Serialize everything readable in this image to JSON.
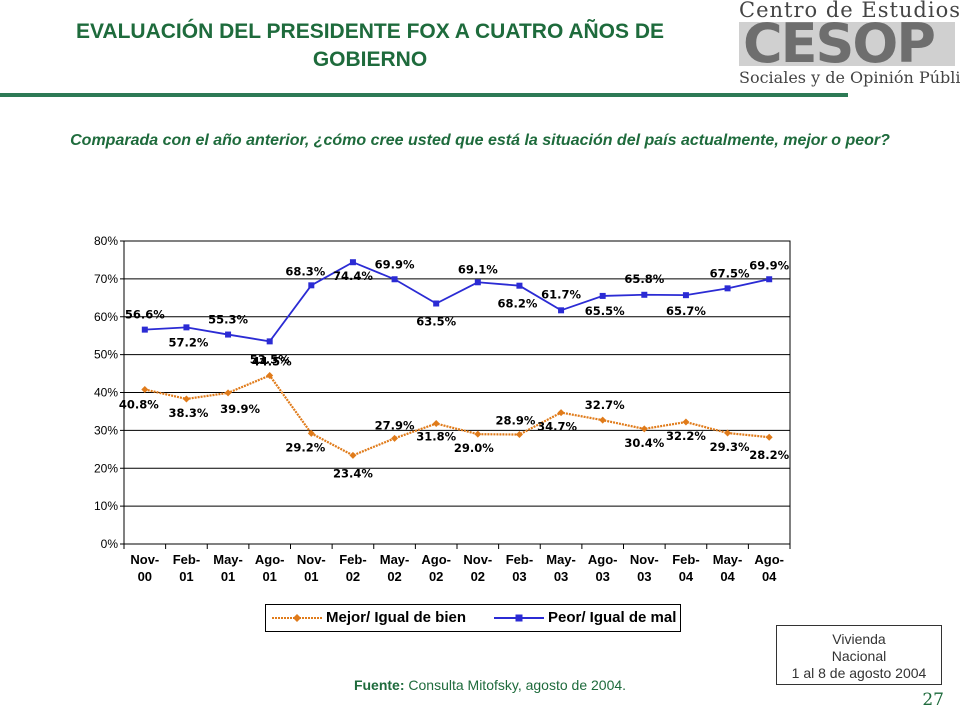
{
  "header": {
    "title": "EVALUACIÓN DEL PRESIDENTE FOX A CUATRO AÑOS DE GOBIERNO",
    "logo_top": "Centro de Estudios",
    "logo_word": "CESOP",
    "logo_bottom": "Sociales y de Opinión Pública"
  },
  "question": "Comparada con el año anterior, ¿cómo cree usted que está la situación del país actualmente, mejor o peor?",
  "chart_data": {
    "type": "line",
    "categories": [
      [
        "Nov-",
        "00"
      ],
      [
        "Feb-",
        "01"
      ],
      [
        "May-",
        "01"
      ],
      [
        "Ago-",
        "01"
      ],
      [
        "Nov-",
        "01"
      ],
      [
        "Feb-",
        "02"
      ],
      [
        "May-",
        "02"
      ],
      [
        "Ago-",
        "02"
      ],
      [
        "Nov-",
        "02"
      ],
      [
        "Feb-",
        "03"
      ],
      [
        "May-",
        "03"
      ],
      [
        "Ago-",
        "03"
      ],
      [
        "Nov-",
        "03"
      ],
      [
        "Feb-",
        "04"
      ],
      [
        "May-",
        "04"
      ],
      [
        "Ago-",
        "04"
      ]
    ],
    "series": [
      {
        "name": "Mejor/ Igual de bien",
        "color": "#e07b1a",
        "marker": "diamond",
        "values": [
          40.8,
          38.3,
          39.9,
          44.5,
          29.2,
          23.4,
          27.9,
          31.8,
          29.0,
          28.9,
          34.7,
          32.7,
          30.4,
          32.2,
          29.3,
          28.2
        ],
        "labels": [
          "40.8%",
          "38.3%",
          "39.9%",
          "44.5%",
          "29.2%",
          "23.4%",
          "27.9%",
          "31.8%",
          "29.0%",
          "28.9%",
          "34.7%",
          "32.7%",
          "30.4%",
          "32.2%",
          "29.3%",
          "28.2%"
        ]
      },
      {
        "name": "Peor/ Igual de mal",
        "color": "#2b2bd4",
        "marker": "square",
        "values": [
          56.6,
          57.2,
          55.3,
          53.5,
          68.3,
          74.4,
          69.9,
          63.5,
          69.1,
          68.2,
          61.7,
          65.5,
          65.8,
          65.7,
          67.5,
          69.9
        ],
        "labels": [
          "56.6%",
          "57.2%",
          "55.3%",
          "53.5%",
          "68.3%",
          "74.4%",
          "69.9%",
          "63.5%",
          "69.1%",
          "68.2%",
          "61.7%",
          "65.5%",
          "65.8%",
          "65.7%",
          "67.5%",
          "69.9%"
        ]
      }
    ],
    "ylim": [
      0,
      80
    ],
    "yticks": [
      "0%",
      "10%",
      "20%",
      "30%",
      "40%",
      "50%",
      "60%",
      "70%",
      "80%"
    ],
    "grid": true,
    "legend": "bottom"
  },
  "legend": {
    "mejor": "Mejor/ Igual de bien",
    "peor": "Peor/ Igual de mal"
  },
  "vivienda": [
    "Vivienda",
    "Nacional",
    "1 al 8 de agosto 2004"
  ],
  "fuente": {
    "label": "Fuente:",
    "text": " Consulta Mitofsky,  agosto de 2004."
  },
  "page_number": "27"
}
